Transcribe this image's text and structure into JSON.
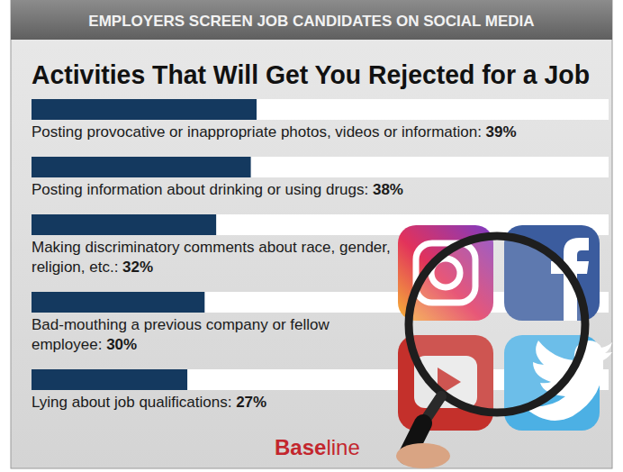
{
  "chart_data": {
    "type": "bar",
    "orientation": "horizontal",
    "subtitle": "EMPLOYERS SCREEN JOB CANDIDATES ON SOCIAL MEDIA",
    "title": "Activities That Will Get You Rejected for a Job",
    "categories": [
      "Posting provocative or inappropriate photos, videos or information:",
      "Posting information about drinking or using drugs:",
      "Making discriminatory comments about race, gender, religion, etc.:",
      "Bad-mouthing a previous company or fellow employee:",
      "Lying about job qualifications:"
    ],
    "values": [
      39,
      38,
      32,
      30,
      27
    ],
    "value_labels": [
      "39%",
      "38%",
      "32%",
      "30%",
      "27%"
    ],
    "data_labels": true,
    "xlim": [
      0,
      100
    ],
    "tick_labels": false,
    "color": "#14395f",
    "annotations": [
      "Baseline"
    ]
  }
}
